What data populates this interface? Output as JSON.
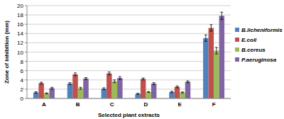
{
  "chart_data": {
    "type": "bar",
    "x_label": "Selected plant extracts",
    "y_label": "Zone of inhibition (mm)",
    "categories": [
      "A",
      "B",
      "C",
      "D",
      "E",
      "F"
    ],
    "series": [
      {
        "name": "B.licheniformis",
        "color": "#4f81bd",
        "values": [
          1.3,
          3.2,
          2.1,
          1.0,
          1.4,
          13.0
        ],
        "errors": [
          0.15,
          0.2,
          0.2,
          0.1,
          0.15,
          0.7
        ]
      },
      {
        "name": "E.coli",
        "color": "#c0504d",
        "values": [
          3.3,
          5.2,
          5.4,
          4.2,
          2.5,
          15.2
        ],
        "errors": [
          0.2,
          0.3,
          0.3,
          0.2,
          0.2,
          0.7
        ]
      },
      {
        "name": "B.cereus",
        "color": "#9bbb59",
        "values": [
          1.1,
          2.2,
          3.7,
          1.4,
          1.3,
          10.3
        ],
        "errors": [
          0.1,
          0.2,
          0.3,
          0.1,
          0.1,
          0.7
        ]
      },
      {
        "name": "P.aeruginosa",
        "color": "#8064a2",
        "values": [
          2.2,
          4.3,
          4.4,
          3.2,
          3.6,
          17.8
        ],
        "errors": [
          0.2,
          0.2,
          0.3,
          0.2,
          0.2,
          0.8
        ]
      }
    ],
    "ylim": [
      0,
      20
    ],
    "yticks": [
      0,
      2,
      4,
      6,
      8,
      10,
      12,
      14,
      16,
      18,
      20
    ],
    "grid": true,
    "legend": "right"
  }
}
